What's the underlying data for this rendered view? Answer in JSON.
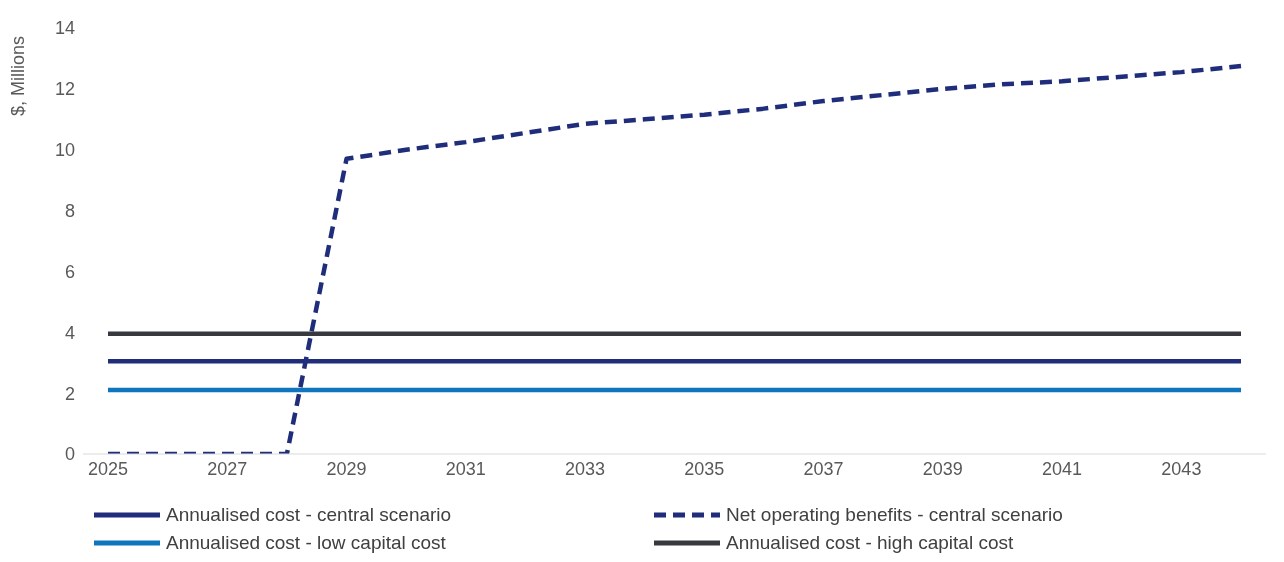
{
  "chart_data": {
    "type": "line",
    "ylabel": "$, Millions",
    "categories": [
      "2025",
      null,
      "2027",
      null,
      "2029",
      null,
      "2031",
      null,
      "2033",
      null,
      "2035",
      null,
      "2037",
      null,
      "2039",
      null,
      "2041",
      null,
      "2043",
      null
    ],
    "series": [
      {
        "name": "Annualised cost - central scenario",
        "color": "#1f2d7b",
        "values": [
          3.05,
          3.05,
          3.05,
          3.05,
          3.05,
          3.05,
          3.05,
          3.05,
          3.05,
          3.05,
          3.05,
          3.05,
          3.05,
          3.05,
          3.05,
          3.05,
          3.05,
          3.05,
          3.05,
          3.05
        ]
      },
      {
        "name": "Net operating benefits - central scenario",
        "color": "#1f2d7b",
        "line_style": "dashed",
        "values": [
          0,
          0,
          0,
          0,
          9.7,
          10,
          10.25,
          10.55,
          10.85,
          11,
          11.15,
          11.35,
          11.6,
          11.8,
          12,
          12.15,
          12.25,
          12.4,
          12.55,
          12.75
        ]
      },
      {
        "name": "Annualised cost - low capital cost",
        "color": "#0f75bc",
        "values": [
          2.1,
          2.1,
          2.1,
          2.1,
          2.1,
          2.1,
          2.1,
          2.1,
          2.1,
          2.1,
          2.1,
          2.1,
          2.1,
          2.1,
          2.1,
          2.1,
          2.1,
          2.1,
          2.1,
          2.1
        ]
      },
      {
        "name": "Annualised cost - high capital cost",
        "color": "#38383f",
        "values": [
          3.95,
          3.95,
          3.95,
          3.95,
          3.95,
          3.95,
          3.95,
          3.95,
          3.95,
          3.95,
          3.95,
          3.95,
          3.95,
          3.95,
          3.95,
          3.95,
          3.95,
          3.95,
          3.95,
          3.95
        ]
      }
    ],
    "ylim": [
      0,
      14
    ],
    "yticks": [
      0,
      2,
      4,
      6,
      8,
      10,
      12,
      14
    ],
    "grid": false,
    "legend": "bottom",
    "line_style": "solid",
    "marker": "none"
  }
}
